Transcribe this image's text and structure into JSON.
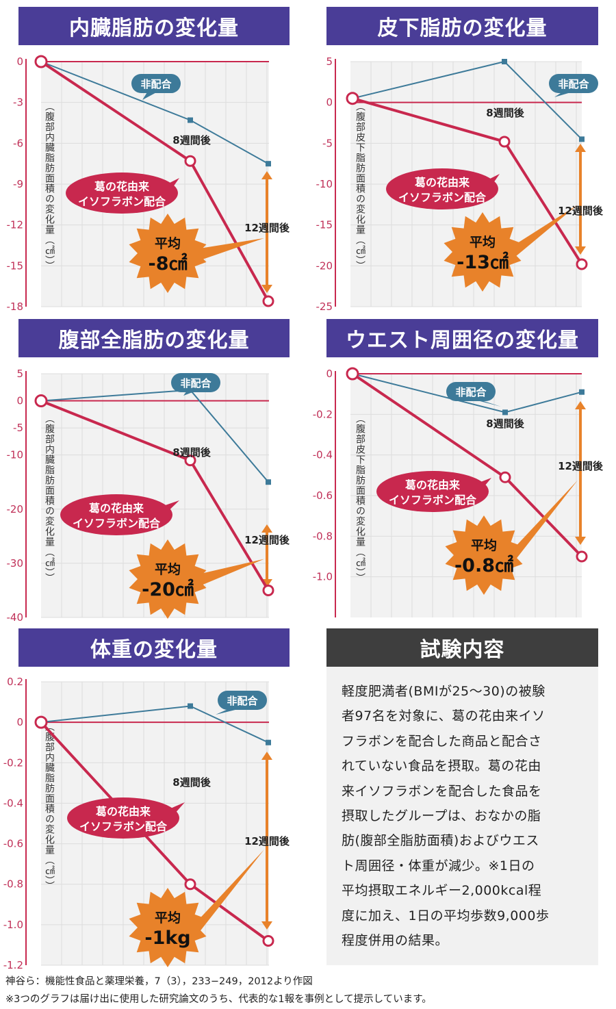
{
  "chart_data": [
    {
      "type": "line",
      "title": "内臓脂肪の変化量",
      "ylabel": "（腹部内臓脂肪面積の変化量（㎠））",
      "ylim": [
        -18,
        0
      ],
      "yticks": [
        "0",
        "-3",
        "-6",
        "-9",
        "-12",
        "-15",
        "-18"
      ],
      "ytick_values": [
        0,
        -3,
        -6,
        -9,
        -12,
        -15,
        -18
      ],
      "x": [
        0,
        8,
        12
      ],
      "series": [
        {
          "name": "非配合",
          "values": [
            0,
            -4.3,
            -7.5
          ]
        },
        {
          "name": "葛の花由来イソフラボン配合",
          "values": [
            0,
            -7.3,
            -17.6
          ]
        }
      ],
      "annotations": {
        "week8": "8週間後",
        "week12": "12週間後",
        "avg_label": "平均",
        "avg_value": "-8㎠"
      }
    },
    {
      "type": "line",
      "title": "皮下脂肪の変化量",
      "ylabel": "（腹部皮下脂肪面積の変化量（㎠））",
      "ylim": [
        -25,
        5
      ],
      "yticks": [
        "5",
        "0",
        "-5",
        "-10",
        "-15",
        "-20",
        "-25"
      ],
      "ytick_values": [
        5,
        0,
        -5,
        -10,
        -15,
        -20,
        -25
      ],
      "x": [
        0,
        8,
        12
      ],
      "series": [
        {
          "name": "非配合",
          "values": [
            0.5,
            5,
            -4.5
          ]
        },
        {
          "name": "葛の花由来イソフラボン配合",
          "values": [
            0.5,
            -4.8,
            -19.8
          ]
        }
      ],
      "annotations": {
        "week8": "8週間後",
        "week12": "12週間後",
        "avg_label": "平均",
        "avg_value": "-13㎠"
      }
    },
    {
      "type": "line",
      "title": "腹部全脂肪の変化量",
      "ylabel": "（腹部内臓脂肪面積の変化量（㎠））",
      "ylim": [
        -40,
        5
      ],
      "yticks": [
        "5",
        "0",
        "-5",
        "-10",
        "-20",
        "-30",
        "-40"
      ],
      "ytick_values": [
        5,
        0,
        -5,
        -10,
        -20,
        -30,
        -40
      ],
      "x": [
        0,
        8,
        12
      ],
      "series": [
        {
          "name": "非配合",
          "values": [
            0,
            2,
            -15
          ]
        },
        {
          "name": "葛の花由来イソフラボン配合",
          "values": [
            0,
            -11,
            -35
          ]
        }
      ],
      "annotations": {
        "week8": "8週間後",
        "week12": "12週間後",
        "avg_label": "平均",
        "avg_value": "-20㎠"
      }
    },
    {
      "type": "line",
      "title": "ウエスト周囲径の変化量",
      "ylabel": "（腹部皮下脂肪面積の変化量（㎠））",
      "ylim": [
        -1.2,
        0
      ],
      "yticks": [
        "0",
        "-0.2",
        "-0.4",
        "-0.6",
        "-0.8",
        "-1.0"
      ],
      "ytick_values": [
        0,
        -0.2,
        -0.4,
        -0.6,
        -0.8,
        -1.0
      ],
      "x": [
        0,
        8,
        12
      ],
      "series": [
        {
          "name": "非配合",
          "values": [
            0,
            -0.19,
            -0.09
          ]
        },
        {
          "name": "葛の花由来イソフラボン配合",
          "values": [
            0,
            -0.51,
            -0.9
          ]
        }
      ],
      "annotations": {
        "week8": "8週間後",
        "week12": "12週間後",
        "avg_label": "平均",
        "avg_value": "-0.8㎠"
      }
    },
    {
      "type": "line",
      "title": "体重の変化量",
      "ylabel": "（腹部内臓脂肪面積の変化量（㎠））",
      "ylim": [
        -1.2,
        0.2
      ],
      "yticks": [
        "0.2",
        "0",
        "-0.2",
        "-0.4",
        "-0.6",
        "-0.8",
        "-1.0",
        "-1.2"
      ],
      "ytick_values": [
        0.2,
        0,
        -0.2,
        -0.4,
        -0.6,
        -0.8,
        -1.0,
        -1.2
      ],
      "x": [
        0,
        8,
        12
      ],
      "series": [
        {
          "name": "非配合",
          "values": [
            0,
            0.08,
            -0.1
          ]
        },
        {
          "name": "葛の花由来イソフラボン配合",
          "values": [
            0,
            -0.8,
            -1.08
          ]
        }
      ],
      "annotations": {
        "week8": "8週間後",
        "week12": "12週間後",
        "avg_label": "平均",
        "avg_value": "-1kg"
      }
    }
  ],
  "colors": {
    "title_bg": "#4a3d97",
    "test_title_bg": "#3e3e3e",
    "control": "#3d7a99",
    "treatment": "#c8284e",
    "accent": "#e8822a"
  },
  "labels": {
    "control": "非配合",
    "treatment_line1": "葛の花由来",
    "treatment_line2": "イソフラボン配合"
  },
  "test": {
    "title": "試験内容",
    "lines": [
      "軽度肥満者(BMIが25～30)の被験",
      "者97名を対象に、葛の花由来イソ",
      "フラボンを配合した商品と配合さ",
      "れていない食品を摂取。葛の花由",
      "来イソフラボンを配合した食品を",
      "摂取したグループは、おなかの脂",
      "肪(腹部全脂肪面積)およびウエス",
      "ト周囲径・体重が減少。※1日の",
      "平均摂取エネルギー2,000kcal程",
      "度に加え、1日の平均歩数9,000歩",
      "程度併用の結果。"
    ]
  },
  "footer": {
    "line1": "神谷ら：機能性食品と薬理栄養，7（3），233−249，2012より作図",
    "line2": "※3つのグラフは届け出に使用した研究論文のうち、代表的な1報を事例として提示しています。"
  }
}
